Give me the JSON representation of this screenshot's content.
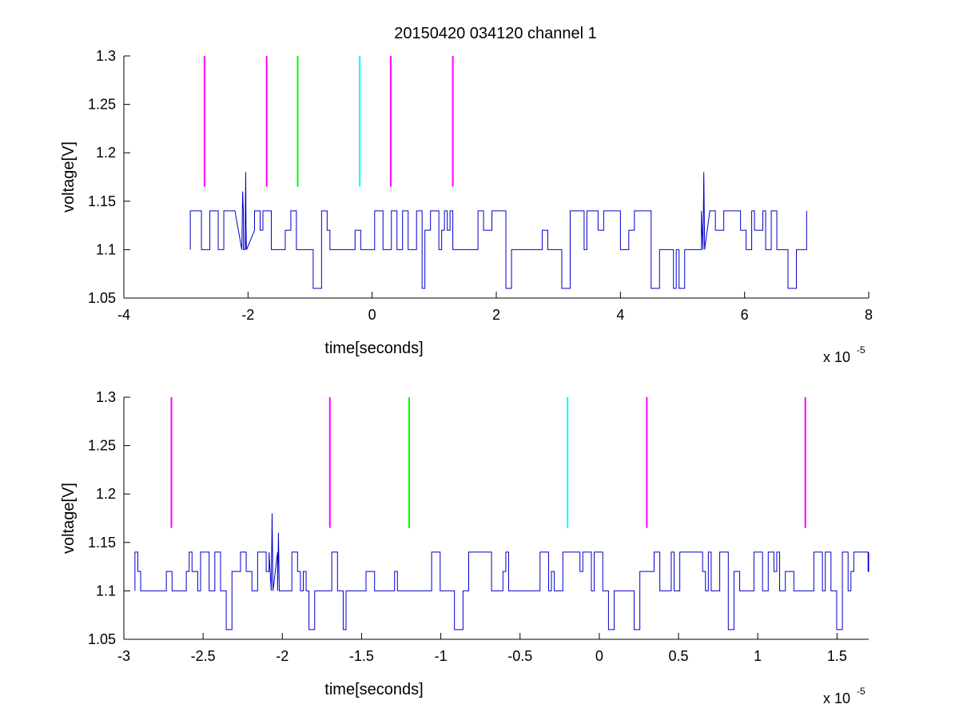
{
  "chart_data": [
    {
      "type": "line",
      "title": "20150420 034120 channel 1",
      "xlabel": "time[seconds]",
      "ylabel": "voltage[V]",
      "x_multiplier_label": "x 10",
      "x_multiplier_exp": "-5",
      "xlim": [
        -4,
        8
      ],
      "ylim": [
        1.05,
        1.3
      ],
      "xticks": [
        -4,
        -2,
        0,
        2,
        4,
        6,
        8
      ],
      "xtick_labels": [
        "-4",
        "-2",
        "0",
        "2",
        "4",
        "6",
        "8"
      ],
      "yticks": [
        1.05,
        1.1,
        1.15,
        1.2,
        1.25,
        1.3
      ],
      "ytick_labels": [
        "1.05",
        "1.1",
        "1.15",
        "1.2",
        "1.25",
        "1.3"
      ],
      "grid": false,
      "signal": {
        "color": "#0000cc",
        "x_start": -2.93,
        "x_end": 7.0,
        "levels": [
          1.06,
          1.1,
          1.12,
          1.14
        ],
        "spikes": [
          [
            -2.05,
            1.18
          ],
          [
            -2.1,
            1.16
          ],
          [
            5.33,
            1.18
          ]
        ]
      },
      "markers": [
        {
          "x": -2.7,
          "y_from": 1.165,
          "y_to": 1.3,
          "color": "#ff00ff"
        },
        {
          "x": -1.7,
          "y_from": 1.165,
          "y_to": 1.3,
          "color": "#ff00ff"
        },
        {
          "x": -1.2,
          "y_from": 1.165,
          "y_to": 1.3,
          "color": "#00ff00"
        },
        {
          "x": -0.2,
          "y_from": 1.165,
          "y_to": 1.3,
          "color": "#00ffff"
        },
        {
          "x": 0.3,
          "y_from": 1.165,
          "y_to": 1.3,
          "color": "#ff00ff"
        },
        {
          "x": 1.3,
          "y_from": 1.165,
          "y_to": 1.3,
          "color": "#ff00ff"
        }
      ]
    },
    {
      "type": "line",
      "title": "",
      "xlabel": "time[seconds]",
      "ylabel": "voltage[V]",
      "x_multiplier_label": "x 10",
      "x_multiplier_exp": "-5",
      "xlim": [
        -3.0,
        1.7
      ],
      "ylim": [
        1.05,
        1.3
      ],
      "xticks": [
        -3,
        -2.5,
        -2,
        -1.5,
        -1,
        -0.5,
        0,
        0.5,
        1,
        1.5
      ],
      "xtick_labels": [
        "-3",
        "-2.5",
        "-2",
        "-1.5",
        "-1",
        "-0.5",
        "0",
        "0.5",
        "1",
        "1.5"
      ],
      "yticks": [
        1.05,
        1.1,
        1.15,
        1.2,
        1.25,
        1.3
      ],
      "ytick_labels": [
        "1.05",
        "1.1",
        "1.15",
        "1.2",
        "1.25",
        "1.3"
      ],
      "grid": false,
      "signal": {
        "color": "#0000cc",
        "x_start": -2.93,
        "x_end": 1.7,
        "levels": [
          1.06,
          1.1,
          1.12,
          1.14
        ],
        "spikes": [
          [
            -2.07,
            1.18
          ],
          [
            -2.03,
            1.16
          ]
        ]
      },
      "markers": [
        {
          "x": -2.7,
          "y_from": 1.165,
          "y_to": 1.3,
          "color": "#ff00ff"
        },
        {
          "x": -1.7,
          "y_from": 1.165,
          "y_to": 1.3,
          "color": "#ff00ff"
        },
        {
          "x": -1.2,
          "y_from": 1.165,
          "y_to": 1.3,
          "color": "#00ff00"
        },
        {
          "x": -0.2,
          "y_from": 1.165,
          "y_to": 1.3,
          "color": "#00ffff"
        },
        {
          "x": 0.3,
          "y_from": 1.165,
          "y_to": 1.3,
          "color": "#ff00ff"
        },
        {
          "x": 1.3,
          "y_from": 1.165,
          "y_to": 1.3,
          "color": "#ff00ff"
        }
      ]
    }
  ]
}
